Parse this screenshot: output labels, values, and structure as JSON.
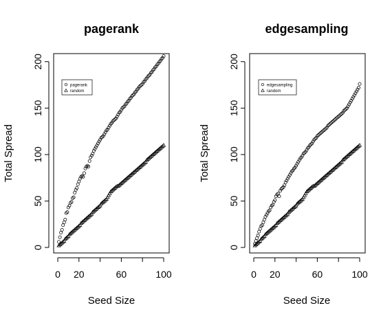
{
  "chart_data": [
    {
      "type": "scatter",
      "title": "pagerank",
      "xlabel": "Seed Size",
      "ylabel": "Total Spread",
      "xlim": [
        0,
        100
      ],
      "ylim": [
        0,
        210
      ],
      "xticks": [
        "0",
        "20",
        "60",
        "100"
      ],
      "xtick_values": [
        0,
        20,
        60,
        100
      ],
      "yticks": [
        "0",
        "50",
        "100",
        "150",
        "200"
      ],
      "ytick_values": [
        0,
        50,
        100,
        150,
        200
      ],
      "grid": false,
      "legend_position": "top-left",
      "series": [
        {
          "name": "pagerank",
          "marker": "circle",
          "x": [
            1,
            2,
            3,
            4,
            5,
            6,
            7,
            8,
            9,
            10,
            11,
            12,
            13,
            14,
            15,
            16,
            17,
            18,
            19,
            20,
            21,
            22,
            23,
            24,
            25,
            26,
            27,
            28,
            29,
            30,
            31,
            32,
            33,
            34,
            35,
            36,
            37,
            38,
            39,
            40,
            41,
            42,
            43,
            44,
            45,
            46,
            47,
            48,
            49,
            50,
            51,
            52,
            53,
            54,
            55,
            56,
            57,
            58,
            59,
            60,
            61,
            62,
            63,
            64,
            65,
            66,
            67,
            68,
            69,
            70,
            71,
            72,
            73,
            74,
            75,
            76,
            77,
            78,
            79,
            80,
            81,
            82,
            83,
            84,
            85,
            86,
            87,
            88,
            89,
            90,
            91,
            92,
            93,
            94,
            95,
            96,
            97,
            98,
            99,
            100
          ],
          "y": [
            6,
            11,
            16,
            19,
            24,
            27,
            30,
            37,
            38,
            43,
            45,
            48,
            49,
            53,
            54,
            59,
            62,
            64,
            68,
            71,
            74,
            76,
            77,
            76,
            80,
            85,
            87,
            88,
            87,
            93,
            97,
            99,
            101,
            104,
            106,
            108,
            110,
            112,
            114,
            116,
            118,
            119,
            120,
            122,
            124,
            126,
            127,
            129,
            131,
            133,
            134,
            136,
            137,
            138,
            139,
            141,
            143,
            145,
            146,
            148,
            150,
            151,
            152,
            154,
            155,
            157,
            158,
            160,
            161,
            163,
            164,
            165,
            167,
            168,
            170,
            171,
            173,
            174,
            175,
            176,
            178,
            179,
            181,
            182,
            184,
            185,
            186,
            188,
            189,
            191,
            192,
            194,
            195,
            197,
            198,
            200,
            201,
            203,
            204,
            206
          ]
        },
        {
          "name": "random",
          "marker": "triangle",
          "x": [
            1,
            2,
            3,
            4,
            5,
            6,
            7,
            8,
            9,
            10,
            11,
            12,
            13,
            14,
            15,
            16,
            17,
            18,
            19,
            20,
            21,
            22,
            23,
            24,
            25,
            26,
            27,
            28,
            29,
            30,
            31,
            32,
            33,
            34,
            35,
            36,
            37,
            38,
            39,
            40,
            41,
            42,
            43,
            44,
            45,
            46,
            47,
            48,
            49,
            50,
            51,
            52,
            53,
            54,
            55,
            56,
            57,
            58,
            59,
            60,
            61,
            62,
            63,
            64,
            65,
            66,
            67,
            68,
            69,
            70,
            71,
            72,
            73,
            74,
            75,
            76,
            77,
            78,
            79,
            80,
            81,
            82,
            83,
            84,
            85,
            86,
            87,
            88,
            89,
            90,
            91,
            92,
            93,
            94,
            95,
            96,
            97,
            98,
            99,
            100
          ],
          "y": [
            2,
            3,
            4,
            5,
            6,
            7,
            9,
            10,
            11,
            12,
            14,
            15,
            16,
            17,
            18,
            19,
            20,
            21,
            22,
            23,
            24,
            26,
            27,
            28,
            29,
            30,
            31,
            32,
            33,
            34,
            35,
            36,
            38,
            39,
            40,
            41,
            42,
            43,
            44,
            45,
            47,
            48,
            49,
            50,
            51,
            52,
            54,
            56,
            58,
            60,
            61,
            62,
            63,
            64,
            65,
            66,
            66,
            67,
            68,
            69,
            70,
            71,
            72,
            73,
            74,
            75,
            76,
            77,
            78,
            79,
            80,
            81,
            82,
            83,
            84,
            85,
            86,
            87,
            88,
            89,
            90,
            91,
            92,
            94,
            95,
            96,
            97,
            98,
            99,
            100,
            101,
            102,
            103,
            104,
            105,
            106,
            107,
            108,
            109,
            110
          ]
        }
      ]
    },
    {
      "type": "scatter",
      "title": "edgesampling",
      "xlabel": "Seed Size",
      "ylabel": "Total Spread",
      "xlim": [
        0,
        100
      ],
      "ylim": [
        0,
        210
      ],
      "xticks": [
        "0",
        "20",
        "60",
        "100"
      ],
      "xtick_values": [
        0,
        20,
        60,
        100
      ],
      "yticks": [
        "0",
        "50",
        "100",
        "150",
        "200"
      ],
      "ytick_values": [
        0,
        50,
        100,
        150,
        200
      ],
      "grid": false,
      "legend_position": "top-left",
      "series": [
        {
          "name": "edgesampling",
          "marker": "circle",
          "x": [
            1,
            2,
            3,
            4,
            5,
            6,
            7,
            8,
            9,
            10,
            11,
            12,
            13,
            14,
            15,
            16,
            17,
            18,
            19,
            20,
            21,
            22,
            23,
            24,
            25,
            26,
            27,
            28,
            29,
            30,
            31,
            32,
            33,
            34,
            35,
            36,
            37,
            38,
            39,
            40,
            41,
            42,
            43,
            44,
            45,
            46,
            47,
            48,
            49,
            50,
            51,
            52,
            53,
            54,
            55,
            56,
            57,
            58,
            59,
            60,
            61,
            62,
            63,
            64,
            65,
            66,
            67,
            68,
            69,
            70,
            71,
            72,
            73,
            74,
            75,
            76,
            77,
            78,
            79,
            80,
            81,
            82,
            83,
            84,
            85,
            86,
            87,
            88,
            89,
            90,
            91,
            92,
            93,
            94,
            95,
            96,
            97,
            98,
            99,
            100
          ],
          "y": [
            4,
            7,
            10,
            13,
            17,
            20,
            23,
            24,
            27,
            30,
            33,
            35,
            37,
            39,
            40,
            43,
            45,
            46,
            49,
            51,
            55,
            57,
            58,
            55,
            61,
            63,
            64,
            65,
            67,
            70,
            72,
            74,
            76,
            78,
            80,
            82,
            83,
            85,
            86,
            88,
            90,
            92,
            94,
            96,
            97,
            99,
            101,
            102,
            103,
            105,
            107,
            108,
            110,
            111,
            112,
            114,
            116,
            117,
            118,
            120,
            121,
            122,
            123,
            124,
            125,
            126,
            127,
            128,
            129,
            131,
            132,
            133,
            134,
            135,
            136,
            137,
            138,
            139,
            140,
            141,
            142,
            143,
            144,
            145,
            147,
            148,
            149,
            150,
            152,
            154,
            156,
            158,
            160,
            162,
            164,
            166,
            168,
            170,
            172,
            176
          ]
        },
        {
          "name": "random",
          "marker": "triangle",
          "x": [
            1,
            2,
            3,
            4,
            5,
            6,
            7,
            8,
            9,
            10,
            11,
            12,
            13,
            14,
            15,
            16,
            17,
            18,
            19,
            20,
            21,
            22,
            23,
            24,
            25,
            26,
            27,
            28,
            29,
            30,
            31,
            32,
            33,
            34,
            35,
            36,
            37,
            38,
            39,
            40,
            41,
            42,
            43,
            44,
            45,
            46,
            47,
            48,
            49,
            50,
            51,
            52,
            53,
            54,
            55,
            56,
            57,
            58,
            59,
            60,
            61,
            62,
            63,
            64,
            65,
            66,
            67,
            68,
            69,
            70,
            71,
            72,
            73,
            74,
            75,
            76,
            77,
            78,
            79,
            80,
            81,
            82,
            83,
            84,
            85,
            86,
            87,
            88,
            89,
            90,
            91,
            92,
            93,
            94,
            95,
            96,
            97,
            98,
            99,
            100
          ],
          "y": [
            2,
            3,
            4,
            5,
            6,
            7,
            9,
            10,
            11,
            12,
            14,
            15,
            16,
            17,
            18,
            19,
            20,
            21,
            22,
            23,
            24,
            26,
            27,
            28,
            29,
            30,
            31,
            32,
            33,
            34,
            35,
            36,
            38,
            39,
            40,
            41,
            42,
            43,
            44,
            45,
            47,
            48,
            49,
            50,
            51,
            52,
            54,
            56,
            58,
            60,
            61,
            62,
            63,
            64,
            65,
            66,
            66,
            67,
            68,
            69,
            70,
            71,
            72,
            73,
            74,
            75,
            76,
            77,
            78,
            79,
            80,
            81,
            82,
            83,
            84,
            85,
            86,
            87,
            88,
            89,
            90,
            91,
            92,
            94,
            95,
            96,
            97,
            98,
            99,
            100,
            101,
            102,
            103,
            104,
            105,
            106,
            107,
            108,
            109,
            110
          ]
        }
      ]
    }
  ]
}
